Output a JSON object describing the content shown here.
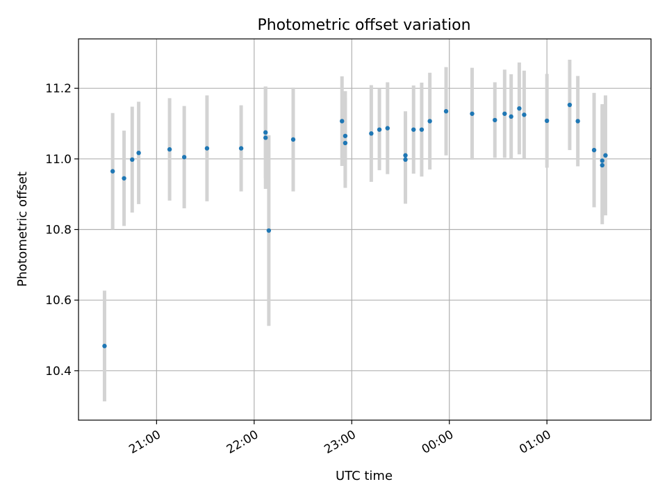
{
  "chart_data": {
    "type": "scatter",
    "title": "Photometric offset variation",
    "xlabel": "UTC time",
    "ylabel": "Photometric offset",
    "x_unit": "UTC time (hh:mm)",
    "xlim": [
      "20:12",
      "26:04"
    ],
    "ylim": [
      10.26,
      11.34
    ],
    "grid": true,
    "xticks": [
      {
        "t": "21:00",
        "label": "21:00"
      },
      {
        "t": "22:00",
        "label": "22:00"
      },
      {
        "t": "23:00",
        "label": "23:00"
      },
      {
        "t": "24:00",
        "label": "00:00"
      },
      {
        "t": "25:00",
        "label": "01:00"
      }
    ],
    "yticks": [
      10.4,
      10.6,
      10.8,
      11.0,
      11.2
    ],
    "ytick_format": 1,
    "colors": {
      "point": "#1f77b4",
      "errorbar": "#d3d3d3",
      "grid": "#b0b0b0"
    },
    "points": [
      {
        "t": "20:28",
        "y": 10.47,
        "err": 0.157
      },
      {
        "t": "20:33",
        "y": 10.965,
        "err": 0.165
      },
      {
        "t": "20:40",
        "y": 10.945,
        "err": 0.135
      },
      {
        "t": "20:45",
        "y": 10.998,
        "err": 0.15
      },
      {
        "t": "20:49",
        "y": 11.017,
        "err": 0.145
      },
      {
        "t": "21:08",
        "y": 11.027,
        "err": 0.145
      },
      {
        "t": "21:17",
        "y": 11.005,
        "err": 0.145
      },
      {
        "t": "21:31",
        "y": 11.03,
        "err": 0.15
      },
      {
        "t": "21:52",
        "y": 11.03,
        "err": 0.122
      },
      {
        "t": "22:07",
        "y": 11.075,
        "err": 0.13
      },
      {
        "t": "22:07",
        "y": 11.06,
        "err": 0.145
      },
      {
        "t": "22:09",
        "y": 10.797,
        "err": 0.27
      },
      {
        "t": "22:24",
        "y": 11.055,
        "err": 0.147
      },
      {
        "t": "22:54",
        "y": 11.107,
        "err": 0.127
      },
      {
        "t": "22:56",
        "y": 11.065,
        "err": 0.127
      },
      {
        "t": "22:56",
        "y": 11.045,
        "err": 0.127
      },
      {
        "t": "23:12",
        "y": 11.072,
        "err": 0.137
      },
      {
        "t": "23:17",
        "y": 11.083,
        "err": 0.115
      },
      {
        "t": "23:22",
        "y": 11.087,
        "err": 0.13
      },
      {
        "t": "23:33",
        "y": 11.01,
        "err": 0.125
      },
      {
        "t": "23:33",
        "y": 10.998,
        "err": 0.125
      },
      {
        "t": "23:38",
        "y": 11.083,
        "err": 0.125
      },
      {
        "t": "23:43",
        "y": 11.083,
        "err": 0.133
      },
      {
        "t": "23:48",
        "y": 11.107,
        "err": 0.137
      },
      {
        "t": "23:58",
        "y": 11.135,
        "err": 0.125
      },
      {
        "t": "24:14",
        "y": 11.128,
        "err": 0.13
      },
      {
        "t": "24:28",
        "y": 11.11,
        "err": 0.107
      },
      {
        "t": "24:34",
        "y": 11.128,
        "err": 0.125
      },
      {
        "t": "24:38",
        "y": 11.12,
        "err": 0.12
      },
      {
        "t": "24:43",
        "y": 11.143,
        "err": 0.13
      },
      {
        "t": "24:46",
        "y": 11.125,
        "err": 0.125
      },
      {
        "t": "25:00",
        "y": 11.108,
        "err": 0.133
      },
      {
        "t": "25:14",
        "y": 11.153,
        "err": 0.128
      },
      {
        "t": "25:19",
        "y": 11.107,
        "err": 0.128
      },
      {
        "t": "25:29",
        "y": 11.025,
        "err": 0.162
      },
      {
        "t": "25:34",
        "y": 10.995,
        "err": 0.16
      },
      {
        "t": "25:34",
        "y": 10.982,
        "err": 0.167
      },
      {
        "t": "25:36",
        "y": 11.01,
        "err": 0.17
      }
    ]
  }
}
